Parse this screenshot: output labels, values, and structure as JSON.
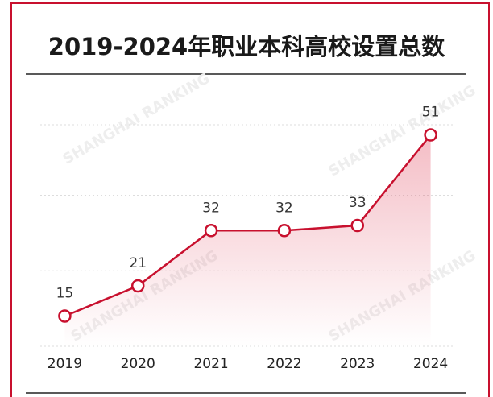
{
  "chart_data": {
    "type": "line",
    "title": "2019-2024年职业本科高校设置总数",
    "watermark": "SHANGHAI RANKING",
    "categories": [
      "2019",
      "2020",
      "2021",
      "2022",
      "2023",
      "2024"
    ],
    "values": [
      15,
      21,
      32,
      32,
      33,
      51
    ],
    "color": "#c8102e",
    "ylim": [
      9,
      53
    ],
    "yticks": [
      9,
      24,
      39,
      53
    ],
    "grid": true
  }
}
